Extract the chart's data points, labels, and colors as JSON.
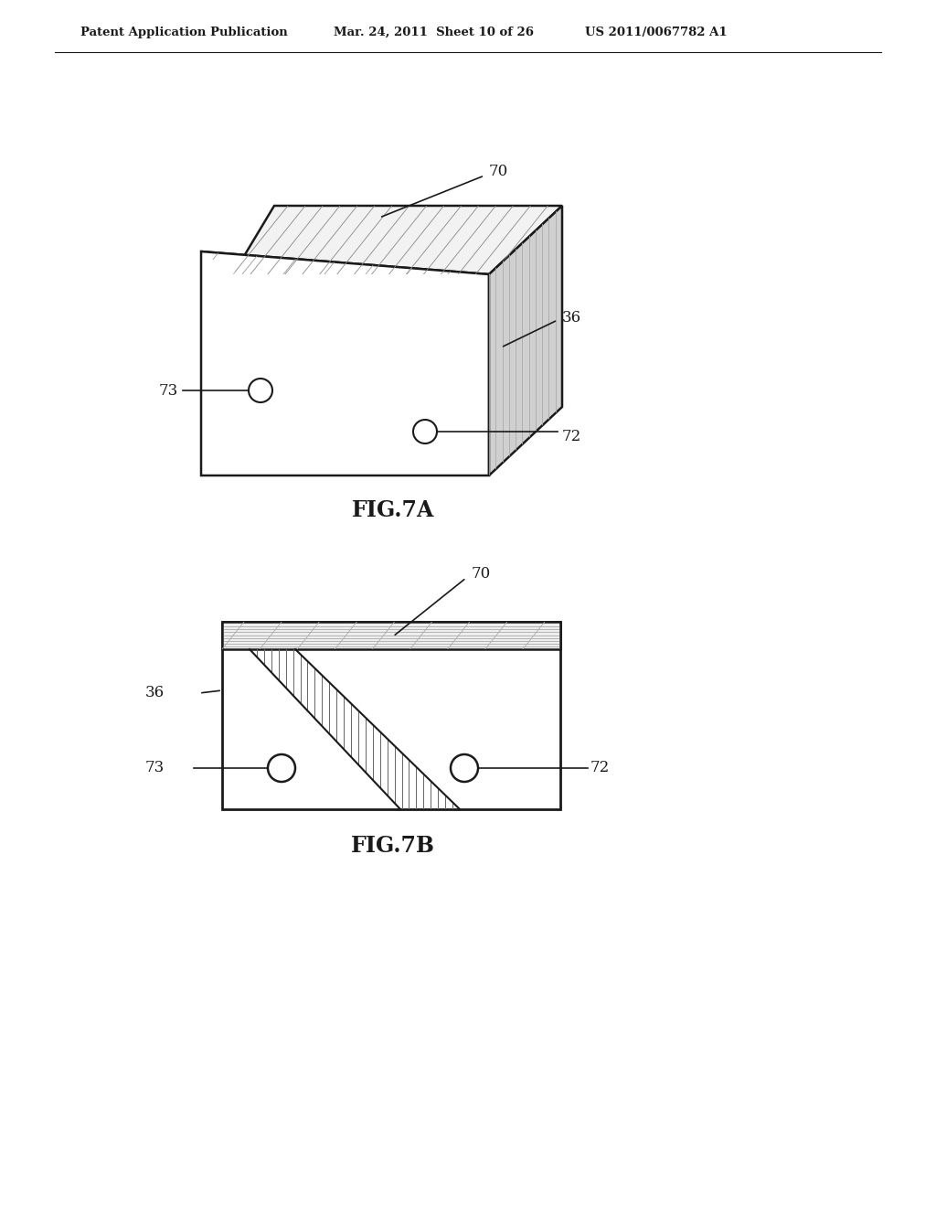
{
  "bg_color": "#ffffff",
  "line_color": "#1a1a1a",
  "header_text": "Patent Application Publication",
  "header_date": "Mar. 24, 2011  Sheet 10 of 26",
  "header_patent": "US 2011/0067782 A1",
  "fig7a_label": "FIG.7A",
  "fig7b_label": "FIG.7B"
}
